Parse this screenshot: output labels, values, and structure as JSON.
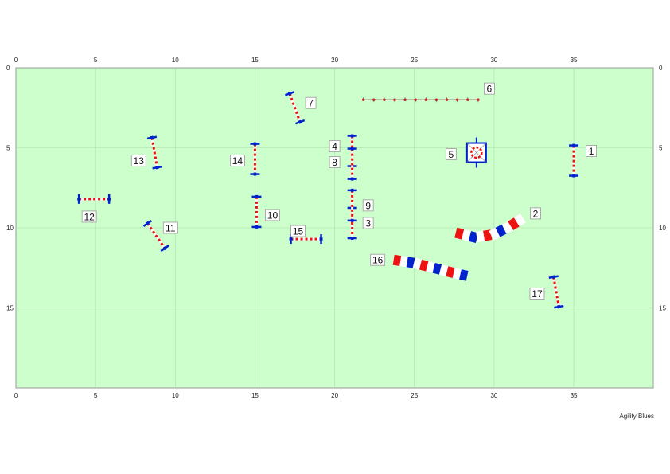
{
  "course": {
    "width_units": 40,
    "height_units": 20,
    "x_ticks": [
      0,
      5,
      10,
      15,
      20,
      25,
      30,
      35
    ],
    "y_ticks": [
      0,
      5,
      10,
      15
    ],
    "field_color": "#ccffcc",
    "grid_color": "#a8dca8",
    "pole_red": "#ee1111",
    "wing_blue": "#0022cc"
  },
  "obstacles": [
    {
      "type": "jump",
      "label": "1",
      "x": 35.0,
      "y": 5.8,
      "angle": 90,
      "lx": 36.1,
      "ly": 5.2
    },
    {
      "type": "tunnel",
      "label": "2",
      "points": [
        [
          27.6,
          10.3
        ],
        [
          28.8,
          10.6
        ],
        [
          30.0,
          10.4
        ],
        [
          31.0,
          9.9
        ],
        [
          31.8,
          9.4
        ]
      ],
      "lx": 32.6,
      "ly": 9.1
    },
    {
      "type": "jump",
      "label": "3",
      "x": 21.1,
      "y": 9.7,
      "angle": 90,
      "lx": 22.1,
      "ly": 9.7,
      "nowings": false
    },
    {
      "type": "jump",
      "label": "4",
      "x": 21.1,
      "y": 5.2,
      "angle": 90,
      "lx": 20.0,
      "ly": 4.9
    },
    {
      "type": "table",
      "label": "5",
      "x": 28.9,
      "y": 5.3,
      "lx": 27.3,
      "ly": 5.4
    },
    {
      "type": "weave",
      "label": "6",
      "x1": 21.8,
      "x2": 29.0,
      "y": 2.0,
      "lx": 29.7,
      "ly": 1.3
    },
    {
      "type": "jump",
      "label": "7",
      "x": 17.5,
      "y": 2.5,
      "angle": 70,
      "lx": 18.5,
      "ly": 2.2
    },
    {
      "type": "jump",
      "label": "8",
      "x": 21.1,
      "y": 6.0,
      "angle": 90,
      "lx": 20.0,
      "ly": 5.9
    },
    {
      "type": "jump",
      "label": "9",
      "x": 21.1,
      "y": 8.6,
      "angle": 90,
      "lx": 22.1,
      "ly": 8.6
    },
    {
      "type": "jump",
      "label": "10",
      "x": 15.1,
      "y": 9.0,
      "angle": 90,
      "lx": 16.1,
      "ly": 9.2
    },
    {
      "type": "jump",
      "label": "11",
      "x": 8.8,
      "y": 10.5,
      "angle": 55,
      "lx": 9.7,
      "ly": 10.0
    },
    {
      "type": "jump",
      "label": "12",
      "x": 4.9,
      "y": 8.2,
      "angle": 0,
      "lx": 4.6,
      "ly": 9.3
    },
    {
      "type": "jump",
      "label": "13",
      "x": 8.7,
      "y": 5.3,
      "angle": 80,
      "lx": 7.7,
      "ly": 5.8
    },
    {
      "type": "jump",
      "label": "14",
      "x": 15.0,
      "y": 5.7,
      "angle": 90,
      "lx": 13.9,
      "ly": 5.8
    },
    {
      "type": "jump",
      "label": "15",
      "x": 18.2,
      "y": 10.7,
      "angle": 0,
      "lx": 17.7,
      "ly": 10.2
    },
    {
      "type": "tunnel",
      "label": "16",
      "points": [
        [
          23.7,
          12.0
        ],
        [
          25.0,
          12.2
        ],
        [
          26.2,
          12.5
        ],
        [
          27.4,
          12.8
        ],
        [
          28.3,
          13.0
        ]
      ],
      "lx": 22.7,
      "ly": 12.0
    },
    {
      "type": "jump",
      "label": "17",
      "x": 33.9,
      "y": 14.0,
      "angle": 80,
      "lx": 32.7,
      "ly": 14.1
    }
  ],
  "footer": {
    "brand": "Agility Blues"
  }
}
